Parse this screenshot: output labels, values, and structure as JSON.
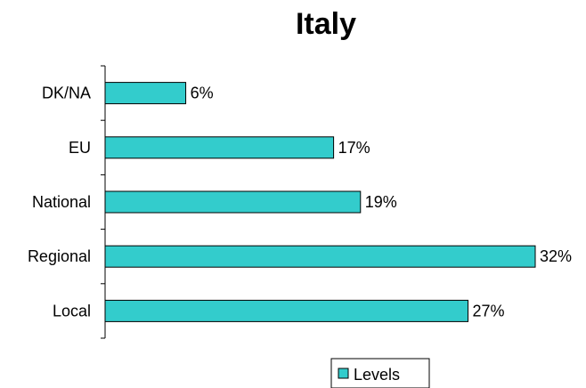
{
  "chart_data": {
    "type": "bar",
    "orientation": "horizontal",
    "title": "Italy",
    "categories": [
      "DK/NA",
      "EU",
      "National",
      "Regional",
      "Local"
    ],
    "series": [
      {
        "name": "Levels",
        "values": [
          6,
          17,
          19,
          32,
          27
        ],
        "labels": [
          "6%",
          "17%",
          "19%",
          "32%",
          "27%"
        ]
      }
    ],
    "xlim": [
      0,
      32
    ],
    "value_unit": "%",
    "grid": false,
    "legend_position": "bottom-right",
    "colors": {
      "bar_fill": "#33CCCC",
      "bar_stroke": "#000000"
    }
  }
}
